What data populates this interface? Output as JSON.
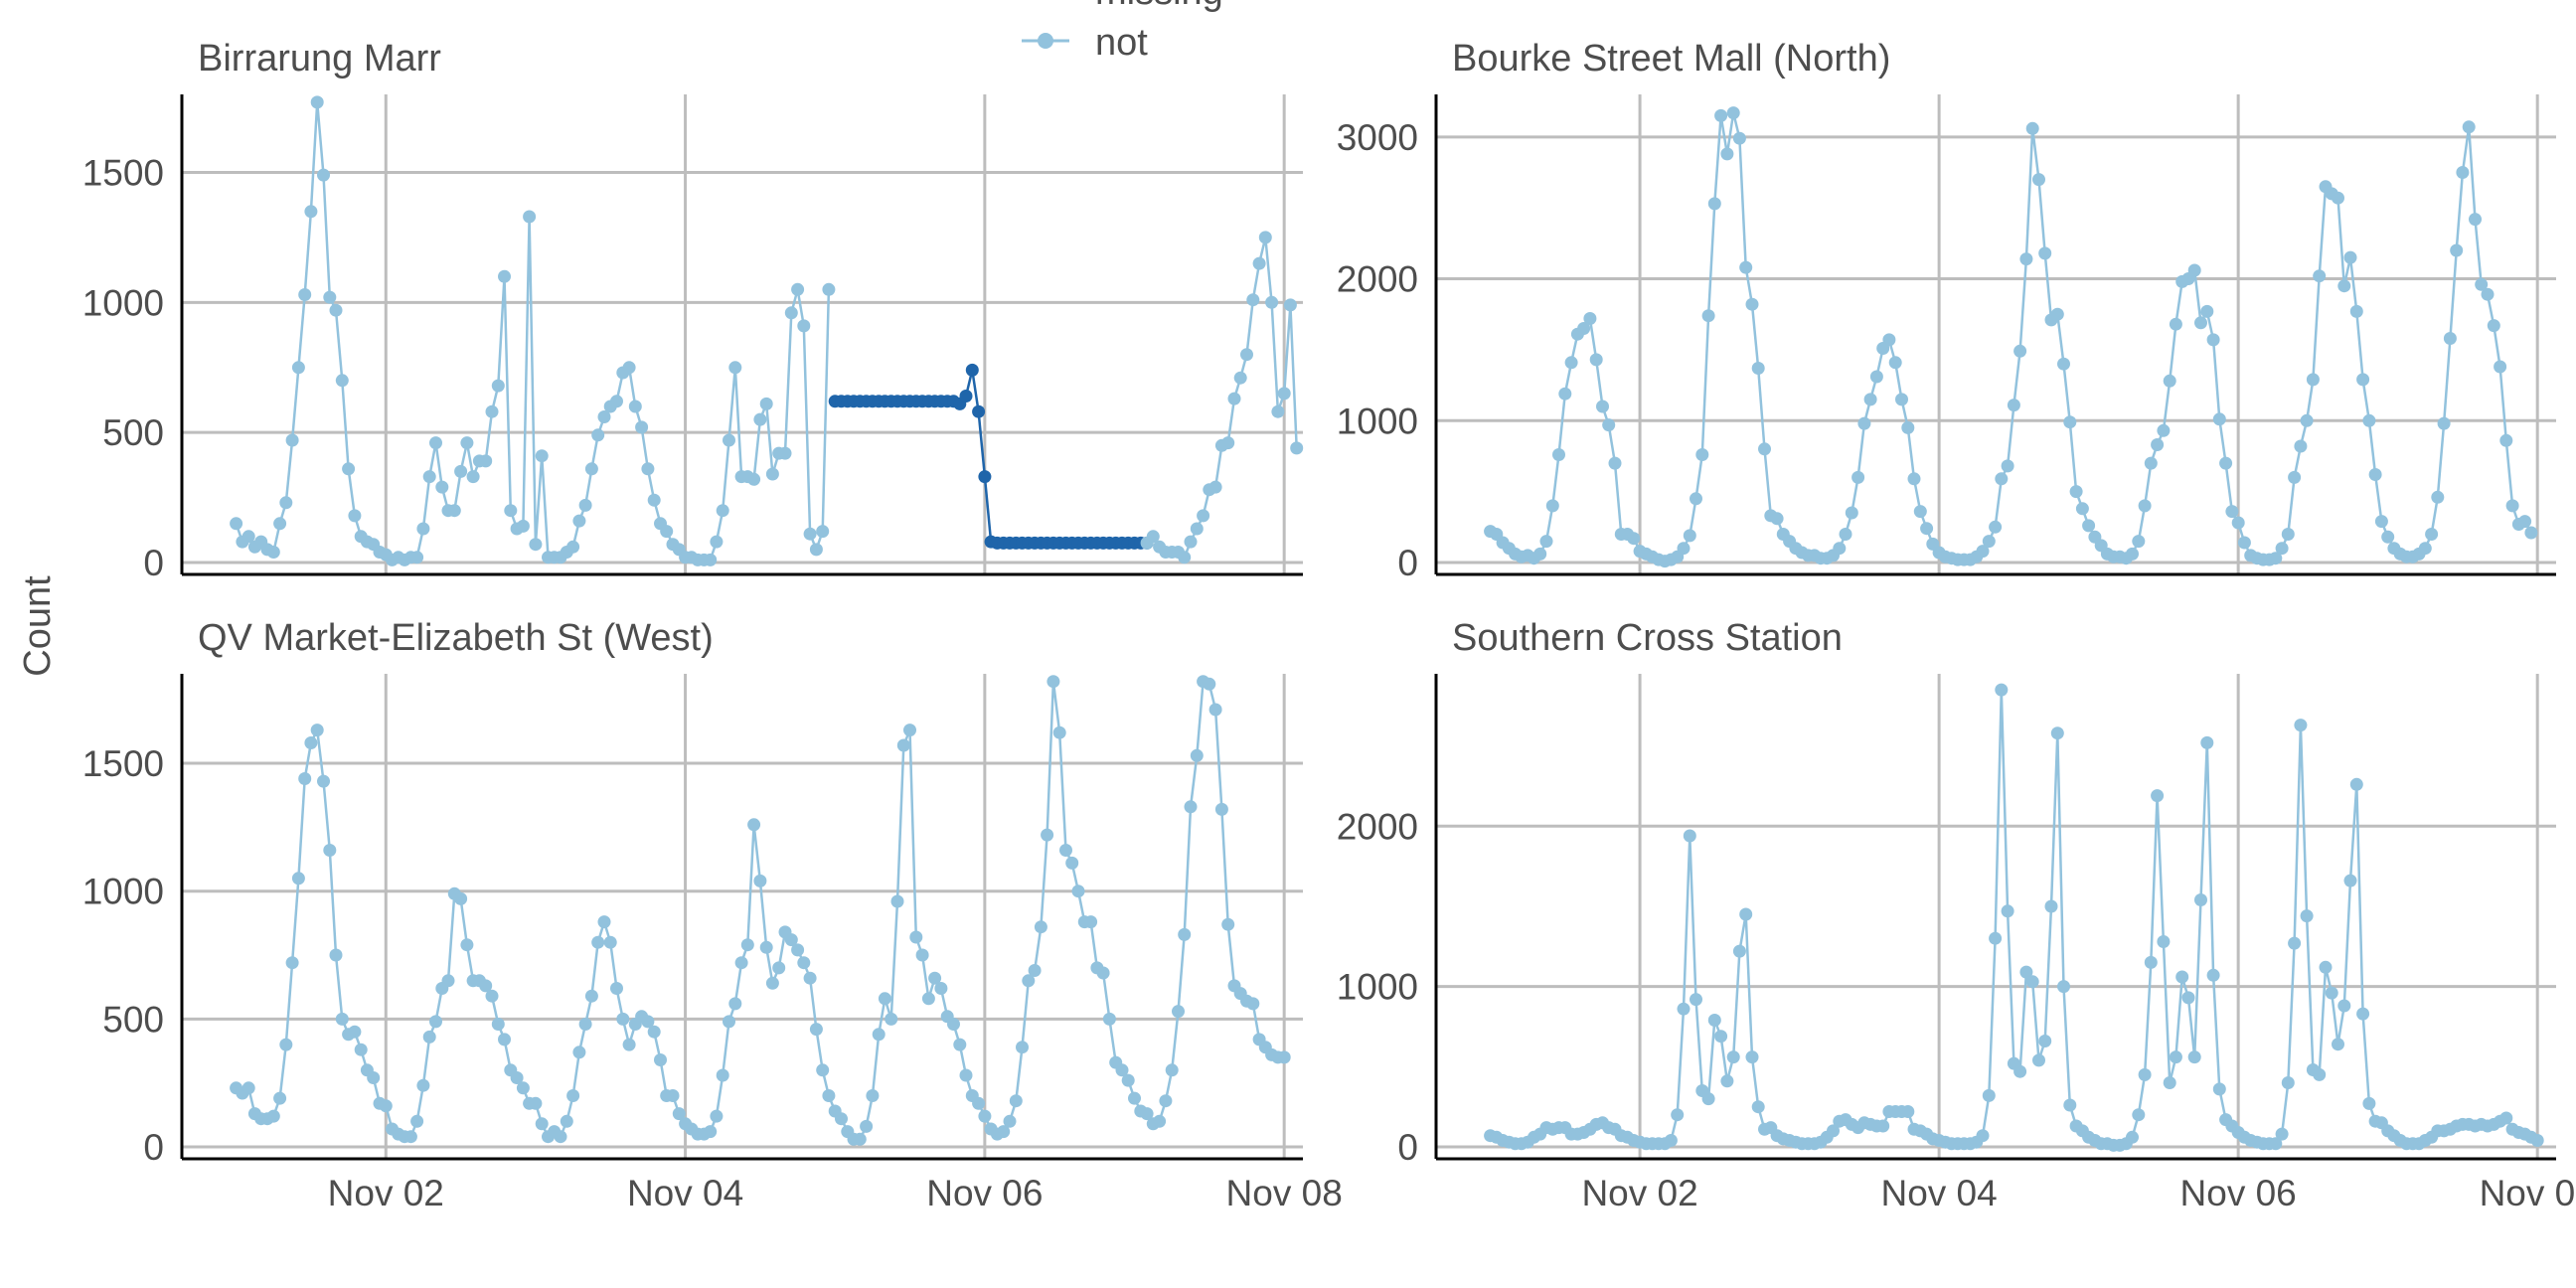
{
  "chart_data": {
    "type": "line",
    "ylabel": "Count",
    "x_tick_labels": [
      "Nov 02",
      "Nov 04",
      "Nov 06",
      "Nov 08"
    ],
    "x_range_hours": [
      0,
      168
    ],
    "grid": true,
    "legend": {
      "placement": "top-center",
      "entries": [
        {
          "label": "missing",
          "color": "#1f65aa"
        },
        {
          "label": "not",
          "color": "#92c2dd"
        }
      ]
    },
    "colors": {
      "not": "#92c2dd",
      "missing": "#1f65aa",
      "grid": "#bdbdbd",
      "axis": "#000000",
      "text": "#4d4d4d"
    },
    "panels": [
      {
        "title": "Birrarung Marr",
        "ylim": [
          0,
          1800
        ],
        "y_ticks": [
          0,
          500,
          1000,
          1500
        ],
        "series": [
          {
            "name": "not",
            "x_start": 0,
            "x_step": 1,
            "values": [
              150,
              80,
              100,
              60,
              80,
              50,
              40,
              150,
              230,
              470,
              750,
              1030,
              1350,
              1770,
              1490,
              1020,
              970,
              700,
              360,
              180,
              100,
              80,
              70,
              40,
              30,
              10,
              20,
              10,
              20,
              20,
              130,
              330,
              460,
              290,
              200,
              200,
              350,
              460,
              330,
              390,
              390,
              580,
              680,
              1100,
              200,
              130,
              140,
              1330,
              70,
              410,
              20,
              20,
              20,
              40,
              60,
              160,
              220,
              360,
              490,
              560,
              600,
              620,
              730,
              750,
              600,
              520,
              360,
              240,
              150,
              120,
              70,
              50,
              20,
              20,
              10,
              10,
              10,
              80,
              200,
              470,
              750,
              330,
              330,
              320,
              550,
              610,
              340,
              420,
              420,
              960,
              1050,
              910,
              110,
              50,
              120,
              1050
            ]
          },
          {
            "name": "missing",
            "x_start": 96,
            "x_step": 1,
            "values": [
              620,
              620,
              620,
              620,
              620,
              620,
              620,
              620,
              620,
              620,
              620,
              620,
              620,
              620,
              620,
              620,
              620,
              620,
              620,
              620,
              610,
              640,
              740,
              580,
              330,
              80,
              75,
              75,
              75,
              75,
              75,
              75,
              75,
              75,
              75,
              75,
              75,
              75,
              75,
              75,
              75,
              75,
              75,
              75,
              75,
              75,
              75,
              75,
              75,
              75,
              75
            ]
          },
          {
            "name": "not",
            "x_start": 146,
            "x_step": 1,
            "values": [
              75,
              100,
              60,
              40,
              40,
              40,
              20,
              80,
              130,
              180,
              280,
              290,
              450,
              460,
              630,
              710,
              800,
              1010,
              1150,
              1250,
              1000,
              580,
              650,
              990,
              440
            ]
          }
        ]
      },
      {
        "title": "Bourke Street Mall (North)",
        "ylim": [
          0,
          3300
        ],
        "y_ticks": [
          0,
          1000,
          2000,
          3000
        ],
        "series": [
          {
            "name": "not",
            "x_start": 0,
            "x_step": 1,
            "values": [
              220,
              200,
              140,
              100,
              60,
              40,
              50,
              30,
              60,
              150,
              400,
              760,
              1190,
              1410,
              1610,
              1650,
              1720,
              1430,
              1100,
              970,
              700,
              200,
              200,
              170,
              80,
              60,
              40,
              20,
              10,
              20,
              40,
              100,
              190,
              450,
              760,
              1740,
              2530,
              3150,
              2880,
              3170,
              2990,
              2080,
              1820,
              1370,
              800,
              330,
              310,
              200,
              150,
              100,
              70,
              50,
              50,
              30,
              30,
              50,
              100,
              200,
              350,
              600,
              980,
              1150,
              1310,
              1510,
              1570,
              1410,
              1150,
              950,
              590,
              360,
              240,
              130,
              70,
              40,
              30,
              20,
              20,
              20,
              40,
              80,
              150,
              250,
              590,
              680,
              1110,
              1490,
              2140,
              3060,
              2700,
              2180,
              1710,
              1750,
              1400,
              990,
              500,
              380,
              260,
              180,
              120,
              60,
              40,
              40,
              30,
              60,
              150,
              400,
              700,
              830,
              930,
              1280,
              1680,
              1980,
              2000,
              2060,
              1690,
              1770,
              1570,
              1010,
              700,
              360,
              280,
              140,
              50,
              30,
              20,
              20,
              30,
              100,
              200,
              600,
              820,
              1000,
              1290,
              2020,
              2650,
              2600,
              2570,
              1950,
              2150,
              1770,
              1290,
              1000,
              620,
              290,
              180,
              100,
              60,
              40,
              40,
              60,
              100,
              200,
              460,
              980,
              1580,
              2200,
              2750,
              3070,
              2420,
              1960,
              1890,
              1670,
              1380,
              860,
              400,
              270,
              290,
              210
            ]
          }
        ]
      },
      {
        "title": "QV Market-Elizabeth St (West)",
        "ylim": [
          0,
          1850
        ],
        "y_ticks": [
          0,
          500,
          1000,
          1500
        ],
        "series": [
          {
            "name": "not",
            "x_start": 0,
            "x_step": 1,
            "values": [
              230,
              210,
              230,
              130,
              110,
              110,
              120,
              190,
              400,
              720,
              1050,
              1440,
              1580,
              1630,
              1430,
              1160,
              750,
              500,
              440,
              450,
              380,
              300,
              270,
              170,
              160,
              70,
              50,
              40,
              40,
              100,
              240,
              430,
              490,
              620,
              650,
              990,
              970,
              790,
              650,
              650,
              630,
              590,
              480,
              420,
              300,
              270,
              230,
              170,
              170,
              90,
              40,
              60,
              40,
              100,
              200,
              370,
              480,
              590,
              800,
              880,
              800,
              620,
              500,
              400,
              480,
              510,
              490,
              450,
              340,
              200,
              200,
              130,
              90,
              70,
              50,
              50,
              60,
              120,
              280,
              490,
              560,
              720,
              790,
              1260,
              1040,
              780,
              640,
              700,
              840,
              810,
              770,
              720,
              660,
              460,
              300,
              200,
              140,
              110,
              60,
              30,
              30,
              80,
              200,
              440,
              580,
              500,
              960,
              1570,
              1630,
              820,
              750,
              580,
              660,
              620,
              510,
              480,
              400,
              280,
              200,
              170,
              120,
              70,
              50,
              60,
              100,
              180,
              390,
              650,
              690,
              860,
              1220,
              1820,
              1620,
              1160,
              1110,
              1000,
              880,
              880,
              700,
              680,
              500,
              330,
              300,
              260,
              190,
              140,
              130,
              90,
              100,
              180,
              300,
              530,
              830,
              1330,
              1530,
              1820,
              1810,
              1710,
              1320,
              870,
              630,
              600,
              570,
              560,
              420,
              390,
              360,
              350,
              350
            ]
          }
        ]
      },
      {
        "title": "Southern Cross Station",
        "ylim": [
          0,
          2950
        ],
        "y_ticks": [
          0,
          1000,
          2000
        ],
        "series": [
          {
            "name": "not",
            "x_start": 0,
            "x_step": 1,
            "values": [
              70,
              60,
              40,
              30,
              20,
              20,
              30,
              60,
              80,
              120,
              110,
              120,
              120,
              80,
              80,
              90,
              110,
              140,
              150,
              120,
              110,
              70,
              60,
              40,
              30,
              20,
              20,
              20,
              20,
              40,
              200,
              860,
              1940,
              920,
              350,
              300,
              790,
              690,
              410,
              560,
              1220,
              1450,
              560,
              250,
              110,
              120,
              70,
              50,
              40,
              30,
              20,
              20,
              20,
              30,
              60,
              100,
              160,
              170,
              140,
              120,
              150,
              140,
              130,
              130,
              220,
              220,
              220,
              220,
              110,
              100,
              80,
              50,
              40,
              30,
              20,
              20,
              20,
              20,
              30,
              70,
              320,
              1300,
              2850,
              1470,
              520,
              470,
              1090,
              1030,
              540,
              660,
              1500,
              2580,
              1000,
              260,
              130,
              100,
              60,
              40,
              20,
              20,
              10,
              10,
              20,
              60,
              200,
              450,
              1150,
              2190,
              1280,
              400,
              560,
              1060,
              930,
              560,
              1540,
              2520,
              1070,
              360,
              170,
              130,
              90,
              60,
              40,
              30,
              20,
              20,
              20,
              80,
              400,
              1270,
              2630,
              1440,
              480,
              450,
              1120,
              960,
              640,
              880,
              1660,
              2260,
              830,
              270,
              160,
              150,
              100,
              70,
              40,
              20,
              20,
              20,
              40,
              60,
              100,
              100,
              110,
              130,
              140,
              140,
              130,
              140,
              130,
              140,
              160,
              180,
              110,
              90,
              80,
              60,
              40
            ]
          }
        ]
      }
    ]
  }
}
